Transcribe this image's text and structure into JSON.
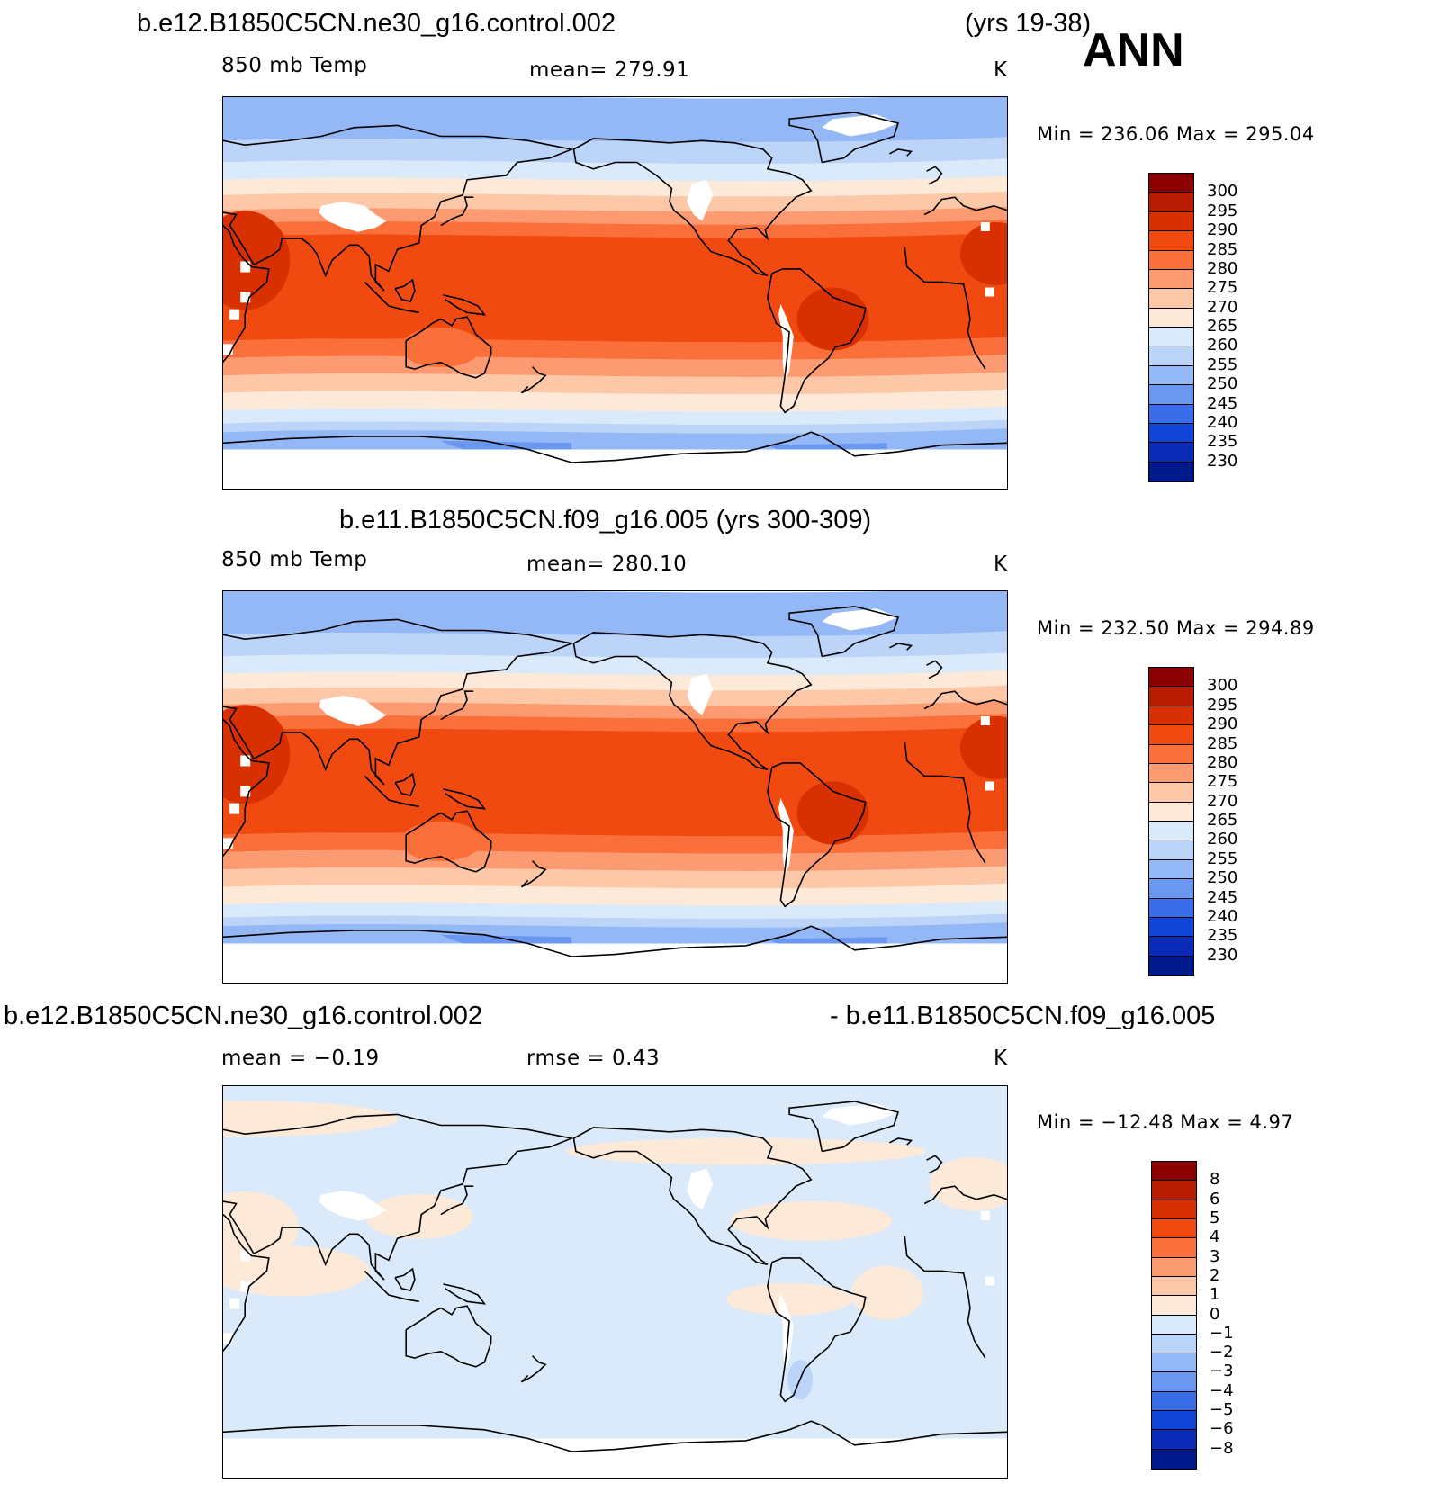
{
  "header": {
    "case1_title": "b.e12.B1850C5CN.ne30_g16.control.002",
    "case1_years": "(yrs 19-38)",
    "season": "ANN"
  },
  "panels": [
    {
      "variable": "850 mb Temp",
      "stat_text": "mean=  279.91",
      "units": "K",
      "minmax": "Min  =  236.06  Max  =  295.04",
      "colorbar": {
        "labels": [
          "300",
          "295",
          "290",
          "285",
          "280",
          "275",
          "270",
          "265",
          "260",
          "255",
          "250",
          "245",
          "240",
          "235",
          "230"
        ],
        "colors": [
          "#8b0000",
          "#b71c00",
          "#d93000",
          "#f04a10",
          "#fa6f3a",
          "#fc9a72",
          "#fdc8a8",
          "#fde9d8",
          "#dbeafb",
          "#bcd4f8",
          "#94b8f5",
          "#6a98f0",
          "#3a6ee8",
          "#1045d8",
          "#0a2ab8",
          "#001a8c"
        ]
      },
      "chart_data": {
        "type": "heatmap",
        "title": "b.e12.B1850C5CN.ne30_g16.control.002 (yrs 19-38)",
        "variable": "850 mb Temp",
        "units": "K",
        "mean": 279.91,
        "min": 236.06,
        "max": 295.04,
        "contour_levels": [
          230,
          235,
          240,
          245,
          250,
          255,
          260,
          265,
          270,
          275,
          280,
          285,
          290,
          295,
          300
        ]
      }
    },
    {
      "case_title": "b.e11.B1850C5CN.f09_g16.005 (yrs 300-309)",
      "variable": "850 mb Temp",
      "stat_text": "mean=  280.10",
      "units": "K",
      "minmax": "Min  =  232.50  Max  =  294.89",
      "colorbar": {
        "labels": [
          "300",
          "295",
          "290",
          "285",
          "280",
          "275",
          "270",
          "265",
          "260",
          "255",
          "250",
          "245",
          "240",
          "235",
          "230"
        ],
        "colors": [
          "#8b0000",
          "#b71c00",
          "#d93000",
          "#f04a10",
          "#fa6f3a",
          "#fc9a72",
          "#fdc8a8",
          "#fde9d8",
          "#dbeafb",
          "#bcd4f8",
          "#94b8f5",
          "#6a98f0",
          "#3a6ee8",
          "#1045d8",
          "#0a2ab8",
          "#001a8c"
        ]
      },
      "chart_data": {
        "type": "heatmap",
        "title": "b.e11.B1850C5CN.f09_g16.005 (yrs 300-309)",
        "variable": "850 mb Temp",
        "units": "K",
        "mean": 280.1,
        "min": 232.5,
        "max": 294.89,
        "contour_levels": [
          230,
          235,
          240,
          245,
          250,
          255,
          260,
          265,
          270,
          275,
          280,
          285,
          290,
          295,
          300
        ]
      }
    },
    {
      "diff_left": "b.e12.B1850C5CN.ne30_g16.control.002",
      "diff_right": "- b.e11.B1850C5CN.f09_g16.005",
      "mean_text": "mean  =   −0.19",
      "rmse_text": "rmse  =     0.43",
      "units": "K",
      "minmax": "Min  =  −12.48  Max  =     4.97",
      "colorbar": {
        "labels": [
          "8",
          "6",
          "5",
          "4",
          "3",
          "2",
          "1",
          "0",
          "−1",
          "−2",
          "−3",
          "−4",
          "−5",
          "−6",
          "−8"
        ],
        "colors": [
          "#8b0000",
          "#b71c00",
          "#d93000",
          "#f04a10",
          "#fa6f3a",
          "#fc9a72",
          "#fdc8a8",
          "#fde9d8",
          "#dbeafb",
          "#bcd4f8",
          "#94b8f5",
          "#6a98f0",
          "#3a6ee8",
          "#1045d8",
          "#0a2ab8",
          "#001a8c"
        ]
      },
      "chart_data": {
        "type": "heatmap",
        "title": "b.e12.B1850C5CN.ne30_g16.control.002 - b.e11.B1850C5CN.f09_g16.005",
        "units": "K",
        "mean": -0.19,
        "rmse": 0.43,
        "min": -12.48,
        "max": 4.97,
        "contour_levels": [
          -8,
          -6,
          -5,
          -4,
          -3,
          -2,
          -1,
          0,
          1,
          2,
          3,
          4,
          5,
          6,
          8
        ]
      }
    }
  ],
  "colors": {
    "land_missing": "#ffffff",
    "coastline": "#000000"
  }
}
